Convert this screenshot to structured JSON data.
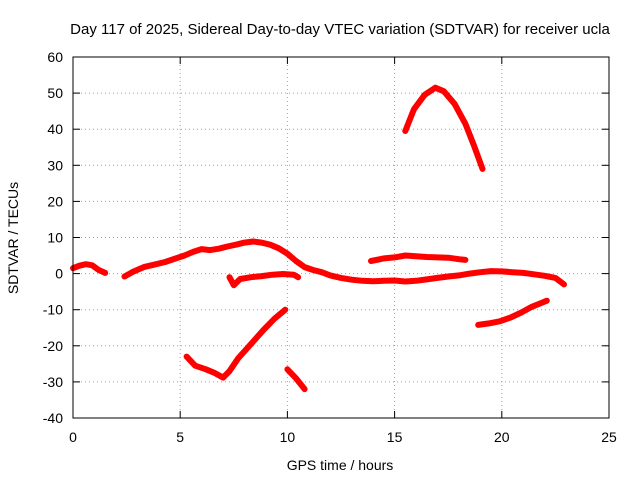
{
  "chart_data": {
    "type": "line",
    "title": "Day 117 of 2025, Sidereal Day-to-day VTEC variation (SDTVAR) for receiver ucla",
    "xlabel": "GPS time / hours",
    "ylabel": "SDTVAR / TECUs",
    "xlim": [
      0,
      25
    ],
    "ylim": [
      -40,
      60
    ],
    "xticks": [
      0,
      5,
      10,
      15,
      20,
      25
    ],
    "yticks": [
      -40,
      -30,
      -20,
      -10,
      0,
      10,
      20,
      30,
      40,
      50,
      60
    ],
    "grid": true,
    "line_color": "#ff0000",
    "series": [
      {
        "name": "segment-1",
        "points": [
          [
            0.0,
            1.5
          ],
          [
            0.3,
            2.2
          ],
          [
            0.6,
            2.6
          ],
          [
            0.9,
            2.3
          ],
          [
            1.2,
            1.0
          ],
          [
            1.5,
            0.2
          ]
        ]
      },
      {
        "name": "segment-2",
        "points": [
          [
            2.4,
            -0.8
          ],
          [
            2.8,
            0.5
          ],
          [
            3.3,
            1.8
          ],
          [
            3.8,
            2.5
          ],
          [
            4.3,
            3.2
          ],
          [
            4.8,
            4.2
          ],
          [
            5.2,
            5.0
          ],
          [
            5.6,
            6.0
          ],
          [
            6.0,
            6.8
          ],
          [
            6.4,
            6.5
          ],
          [
            6.8,
            6.9
          ],
          [
            7.2,
            7.5
          ],
          [
            7.6,
            8.0
          ],
          [
            8.0,
            8.6
          ],
          [
            8.4,
            8.9
          ],
          [
            8.8,
            8.6
          ],
          [
            9.2,
            8.0
          ],
          [
            9.6,
            7.0
          ],
          [
            10.0,
            5.5
          ],
          [
            10.4,
            3.5
          ],
          [
            10.8,
            1.8
          ],
          [
            11.2,
            1.0
          ],
          [
            11.6,
            0.4
          ],
          [
            12.0,
            -0.5
          ],
          [
            12.5,
            -1.2
          ],
          [
            13.0,
            -1.7
          ],
          [
            13.5,
            -2.0
          ],
          [
            14.0,
            -2.1
          ],
          [
            14.5,
            -2.0
          ],
          [
            15.0,
            -1.9
          ],
          [
            15.5,
            -2.2
          ],
          [
            16.0,
            -2.0
          ],
          [
            16.5,
            -1.6
          ],
          [
            17.0,
            -1.2
          ],
          [
            17.5,
            -0.8
          ],
          [
            18.0,
            -0.5
          ],
          [
            18.5,
            0.0
          ],
          [
            19.0,
            0.4
          ],
          [
            19.5,
            0.7
          ],
          [
            20.0,
            0.6
          ],
          [
            20.5,
            0.4
          ],
          [
            21.0,
            0.2
          ],
          [
            21.5,
            -0.2
          ],
          [
            22.0,
            -0.6
          ],
          [
            22.5,
            -1.2
          ],
          [
            22.9,
            -3.0
          ]
        ]
      },
      {
        "name": "segment-3",
        "points": [
          [
            7.3,
            -1.0
          ],
          [
            7.5,
            -3.2
          ],
          [
            7.8,
            -1.5
          ],
          [
            8.3,
            -1.0
          ],
          [
            8.8,
            -0.7
          ],
          [
            9.3,
            -0.3
          ],
          [
            9.8,
            -0.1
          ],
          [
            10.3,
            -0.3
          ],
          [
            10.5,
            -1.0
          ]
        ]
      },
      {
        "name": "segment-4",
        "points": [
          [
            5.3,
            -23.0
          ],
          [
            5.7,
            -25.5
          ],
          [
            6.2,
            -26.5
          ],
          [
            6.6,
            -27.5
          ],
          [
            7.0,
            -28.8
          ],
          [
            7.3,
            -27.0
          ],
          [
            7.7,
            -23.5
          ],
          [
            8.3,
            -19.5
          ],
          [
            8.9,
            -15.5
          ],
          [
            9.4,
            -12.5
          ],
          [
            9.9,
            -10.0
          ]
        ]
      },
      {
        "name": "segment-5",
        "points": [
          [
            10.0,
            -26.5
          ],
          [
            10.4,
            -29.0
          ],
          [
            10.8,
            -32.0
          ]
        ]
      },
      {
        "name": "segment-6",
        "points": [
          [
            13.9,
            3.5
          ],
          [
            14.5,
            4.2
          ],
          [
            15.0,
            4.5
          ],
          [
            15.5,
            5.0
          ],
          [
            16.0,
            4.8
          ],
          [
            16.5,
            4.6
          ],
          [
            17.0,
            4.5
          ],
          [
            17.5,
            4.4
          ],
          [
            18.0,
            4.0
          ],
          [
            18.3,
            3.8
          ]
        ]
      },
      {
        "name": "segment-7",
        "points": [
          [
            15.5,
            39.5
          ],
          [
            15.9,
            45.5
          ],
          [
            16.4,
            49.5
          ],
          [
            16.9,
            51.5
          ],
          [
            17.3,
            50.5
          ],
          [
            17.8,
            47.0
          ],
          [
            18.3,
            41.5
          ],
          [
            18.7,
            35.5
          ],
          [
            19.1,
            29.0
          ]
        ]
      },
      {
        "name": "segment-8",
        "points": [
          [
            18.9,
            -14.2
          ],
          [
            19.4,
            -13.8
          ],
          [
            19.9,
            -13.2
          ],
          [
            20.4,
            -12.2
          ],
          [
            20.9,
            -10.8
          ],
          [
            21.4,
            -9.2
          ],
          [
            21.9,
            -8.0
          ],
          [
            22.1,
            -7.5
          ]
        ]
      }
    ]
  }
}
